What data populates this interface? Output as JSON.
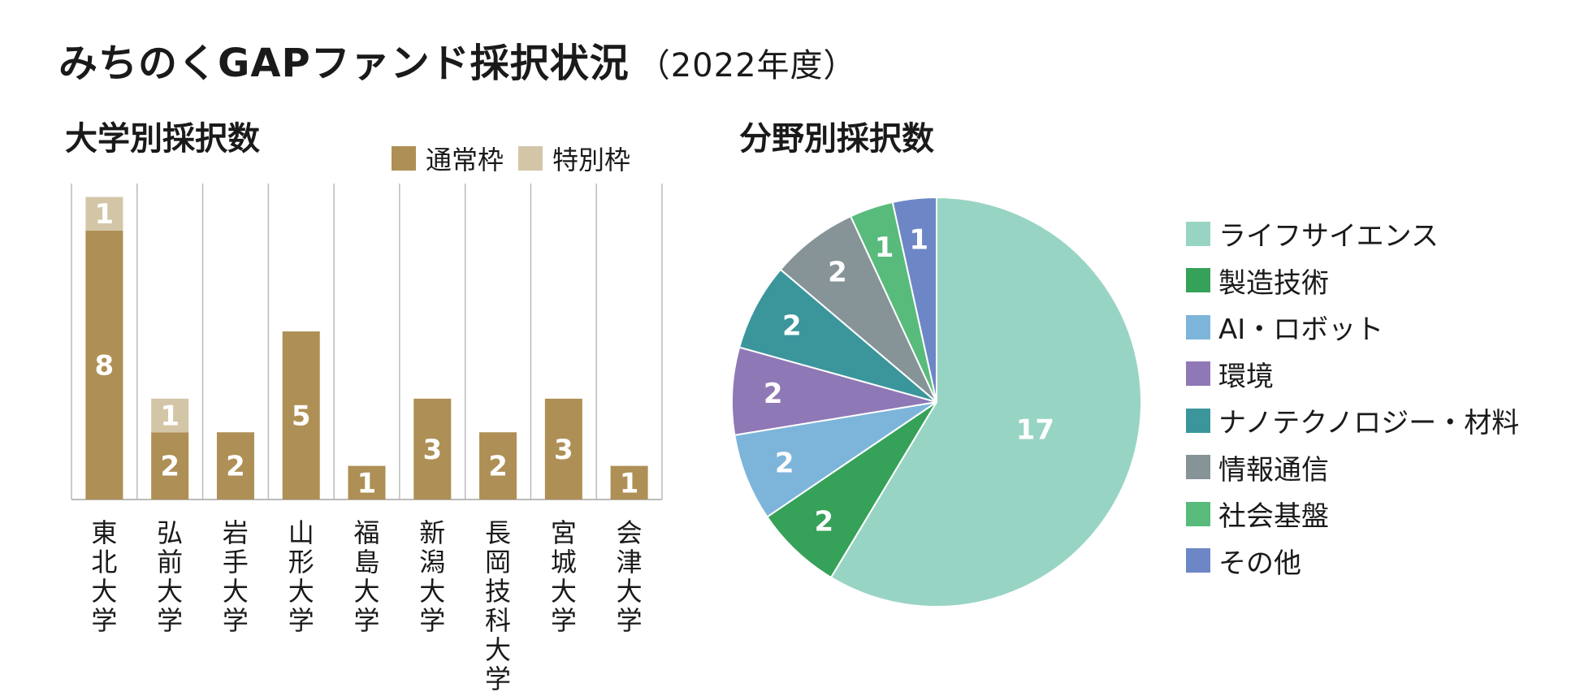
{
  "title": {
    "main": "みちのくGAPファンド採択状況",
    "sub": "（2022年度）"
  },
  "colors": {
    "regular": "#ae8f55",
    "special": "#d3c6a7",
    "grid": "#bbbbbb",
    "label_text": "#ffffff"
  },
  "chart_data": [
    {
      "type": "bar",
      "stacked": true,
      "title": "大学別採択数",
      "categories": [
        "東北大学",
        "弘前大学",
        "岩手大学",
        "山形大学",
        "福島大学",
        "新潟大学",
        "長岡技科大学",
        "宮城大学",
        "会津大学"
      ],
      "series": [
        {
          "name": "通常枠",
          "color": "#ae8f55",
          "values": [
            8,
            2,
            2,
            5,
            1,
            3,
            2,
            3,
            1
          ]
        },
        {
          "name": "特別枠",
          "color": "#d3c6a7",
          "values": [
            1,
            1,
            0,
            0,
            0,
            0,
            0,
            0,
            0
          ]
        }
      ],
      "ylim": [
        0,
        9.4
      ],
      "legend_position": "top-right"
    },
    {
      "type": "pie",
      "title": "分野別採択数",
      "start": "12 o'clock",
      "direction": "clockwise",
      "slices": [
        {
          "label": "ライフサイエンス",
          "value": 17,
          "color": "#98d4c4"
        },
        {
          "label": "製造技術",
          "value": 2,
          "color": "#36a158"
        },
        {
          "label": "AI・ロボット",
          "value": 2,
          "color": "#7db5da"
        },
        {
          "label": "環境",
          "value": 2,
          "color": "#8f78b6"
        },
        {
          "label": "ナノテクノロジー・材料",
          "value": 2,
          "color": "#3b969c"
        },
        {
          "label": "情報通信",
          "value": 2,
          "color": "#869397"
        },
        {
          "label": "社会基盤",
          "value": 1,
          "color": "#58bb7b"
        },
        {
          "label": "その他",
          "value": 1,
          "color": "#6c86c6"
        }
      ],
      "legend_position": "right"
    }
  ]
}
